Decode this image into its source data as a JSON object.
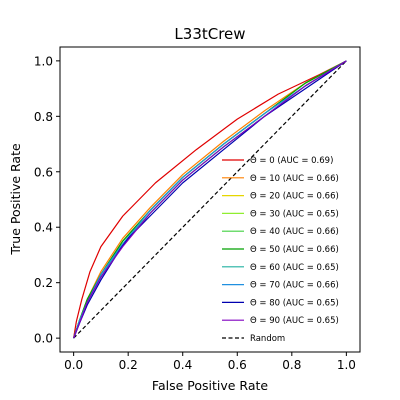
{
  "chart_data": {
    "type": "line",
    "title": "L33tCrew",
    "xlabel": "False Positive Rate",
    "ylabel": "True Positive Rate",
    "xlim": [
      -0.05,
      1.05
    ],
    "ylim": [
      -0.05,
      1.05
    ],
    "xticks": [
      0.0,
      0.2,
      0.4,
      0.6,
      0.8,
      1.0
    ],
    "yticks": [
      0.0,
      0.2,
      0.4,
      0.6,
      0.8,
      1.0
    ],
    "xtick_labels": [
      "0.0",
      "0.2",
      "0.4",
      "0.6",
      "0.8",
      "1.0"
    ],
    "ytick_labels": [
      "0.0",
      "0.2",
      "0.4",
      "0.6",
      "0.8",
      "1.0"
    ],
    "grid": false,
    "legend_position": "lower right",
    "series": [
      {
        "name": "Θ = 0 (AUC = 0.69)",
        "color": "#e00000",
        "style": "solid",
        "x": [
          0.0,
          0.01,
          0.03,
          0.06,
          0.1,
          0.18,
          0.3,
          0.45,
          0.6,
          0.75,
          0.9,
          1.0
        ],
        "y": [
          0.0,
          0.06,
          0.14,
          0.24,
          0.33,
          0.44,
          0.56,
          0.68,
          0.79,
          0.88,
          0.95,
          1.0
        ]
      },
      {
        "name": "Θ = 10 (AUC = 0.66)",
        "color": "#ff8000",
        "style": "solid",
        "x": [
          0.0,
          0.02,
          0.05,
          0.1,
          0.18,
          0.28,
          0.4,
          0.55,
          0.7,
          0.85,
          1.0
        ],
        "y": [
          0.0,
          0.06,
          0.14,
          0.24,
          0.36,
          0.47,
          0.59,
          0.71,
          0.82,
          0.92,
          1.0
        ]
      },
      {
        "name": "Θ = 20 (AUC = 0.66)",
        "color": "#e6d600",
        "style": "solid",
        "x": [
          0.0,
          0.02,
          0.05,
          0.1,
          0.18,
          0.28,
          0.4,
          0.55,
          0.7,
          0.85,
          1.0
        ],
        "y": [
          0.0,
          0.06,
          0.14,
          0.23,
          0.35,
          0.46,
          0.58,
          0.7,
          0.81,
          0.92,
          1.0
        ]
      },
      {
        "name": "Θ = 30 (AUC = 0.65)",
        "color": "#90ee30",
        "style": "solid",
        "x": [
          0.0,
          0.02,
          0.05,
          0.1,
          0.18,
          0.28,
          0.4,
          0.55,
          0.7,
          0.85,
          1.0
        ],
        "y": [
          0.0,
          0.06,
          0.13,
          0.23,
          0.34,
          0.45,
          0.57,
          0.69,
          0.8,
          0.91,
          1.0
        ]
      },
      {
        "name": "Θ = 40 (AUC = 0.66)",
        "color": "#40d040",
        "style": "solid",
        "x": [
          0.0,
          0.02,
          0.05,
          0.1,
          0.18,
          0.28,
          0.4,
          0.55,
          0.7,
          0.85,
          1.0
        ],
        "y": [
          0.0,
          0.06,
          0.14,
          0.23,
          0.35,
          0.46,
          0.58,
          0.7,
          0.81,
          0.92,
          1.0
        ]
      },
      {
        "name": "Θ = 50 (AUC = 0.66)",
        "color": "#00a000",
        "style": "solid",
        "x": [
          0.0,
          0.02,
          0.05,
          0.1,
          0.18,
          0.28,
          0.4,
          0.55,
          0.7,
          0.85,
          1.0
        ],
        "y": [
          0.0,
          0.06,
          0.14,
          0.23,
          0.35,
          0.46,
          0.58,
          0.7,
          0.81,
          0.92,
          1.0
        ]
      },
      {
        "name": "Θ = 60 (AUC = 0.65)",
        "color": "#20b0a0",
        "style": "solid",
        "x": [
          0.0,
          0.02,
          0.05,
          0.1,
          0.18,
          0.28,
          0.4,
          0.55,
          0.7,
          0.85,
          1.0
        ],
        "y": [
          0.0,
          0.05,
          0.13,
          0.22,
          0.34,
          0.45,
          0.57,
          0.69,
          0.8,
          0.91,
          1.0
        ]
      },
      {
        "name": "Θ = 70 (AUC = 0.66)",
        "color": "#2090e0",
        "style": "solid",
        "x": [
          0.0,
          0.02,
          0.05,
          0.1,
          0.18,
          0.28,
          0.4,
          0.55,
          0.7,
          0.85,
          1.0
        ],
        "y": [
          0.0,
          0.06,
          0.13,
          0.23,
          0.34,
          0.46,
          0.58,
          0.7,
          0.81,
          0.91,
          1.0
        ]
      },
      {
        "name": "Θ = 80 (AUC = 0.65)",
        "color": "#0000b0",
        "style": "solid",
        "x": [
          0.0,
          0.02,
          0.05,
          0.1,
          0.17,
          0.2,
          0.28,
          0.4,
          0.55,
          0.7,
          0.85,
          1.0
        ],
        "y": [
          0.0,
          0.05,
          0.12,
          0.21,
          0.32,
          0.36,
          0.44,
          0.56,
          0.68,
          0.8,
          0.9,
          1.0
        ]
      },
      {
        "name": "Θ = 90 (AUC = 0.65)",
        "color": "#8000c0",
        "style": "solid",
        "x": [
          0.0,
          0.02,
          0.05,
          0.1,
          0.18,
          0.28,
          0.4,
          0.55,
          0.7,
          0.85,
          1.0
        ],
        "y": [
          0.0,
          0.05,
          0.13,
          0.22,
          0.33,
          0.45,
          0.57,
          0.69,
          0.8,
          0.91,
          1.0
        ]
      },
      {
        "name": "Random",
        "color": "#000000",
        "style": "dashed",
        "x": [
          0.0,
          1.0
        ],
        "y": [
          0.0,
          1.0
        ]
      }
    ]
  }
}
